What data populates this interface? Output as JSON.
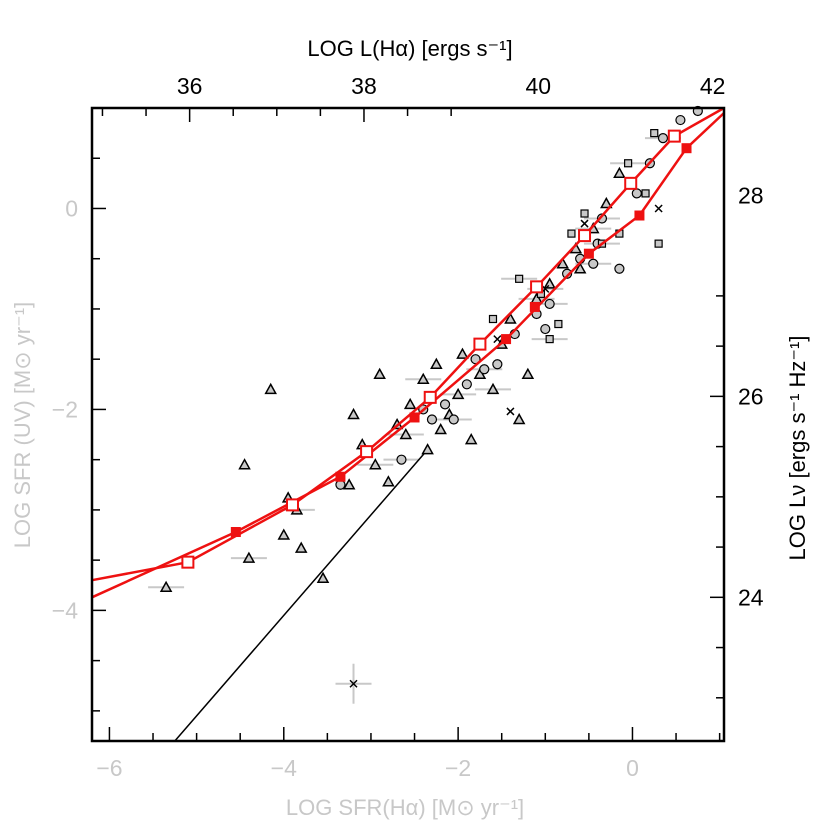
{
  "chart_data": {
    "type": "scatter",
    "axes": {
      "bottom": {
        "label": "LOG SFR(Hα) [M⊙ yr⁻¹]",
        "range": [
          -6.2,
          1.05
        ],
        "ticks": [
          "−6",
          "−4",
          "−2",
          "0"
        ],
        "tick_values": [
          -6,
          -4,
          -2,
          0
        ],
        "color": "#c8c8c8"
      },
      "left": {
        "label": "LOG SFR (UV) [M⊙ yr⁻¹]",
        "range": [
          -5.3,
          1.0
        ],
        "ticks": [
          "−4",
          "−2",
          "0"
        ],
        "tick_values": [
          -4,
          -2,
          0
        ],
        "color": "#c8c8c8"
      },
      "top": {
        "label": "LOG L(Hα) [ergs s⁻¹]",
        "ticks": [
          "36",
          "38",
          "40",
          "42"
        ],
        "tick_values_bottom_units": [
          -5.08,
          -3.08,
          -1.08,
          0.92
        ],
        "color": "#000000"
      },
      "right": {
        "label": "LOG Lν [ergs s⁻¹ Hz⁻¹]",
        "ticks": [
          "24",
          "26",
          "28"
        ],
        "tick_values_left_units": [
          -3.87,
          -1.87,
          0.13
        ],
        "color": "#000000"
      }
    },
    "one_to_one_line": {
      "x": [
        -5.25,
        -2.38
      ],
      "y": [
        -5.3,
        -2.43
      ],
      "color": "#000000"
    },
    "model_curves": [
      {
        "color": "#ee1111",
        "marker": "filled-square",
        "line_x": [
          -6.2,
          -4.55,
          -3.35,
          -2.5,
          -1.45,
          -0.5,
          0.08,
          0.62,
          1.05
        ],
        "line_y": [
          -3.87,
          -3.22,
          -2.67,
          -2.08,
          -1.3,
          -0.45,
          -0.07,
          0.6,
          0.95
        ],
        "points": [
          [
            -4.55,
            -3.22
          ],
          [
            -3.35,
            -2.67
          ],
          [
            -2.5,
            -2.08
          ],
          [
            -1.45,
            -1.3
          ],
          [
            -1.12,
            -0.98
          ],
          [
            -0.5,
            -0.45
          ],
          [
            0.08,
            -0.07
          ],
          [
            0.62,
            0.6
          ]
        ]
      },
      {
        "color": "#ee1111",
        "marker": "open-square",
        "line_x": [
          -6.2,
          -5.1,
          -3.9,
          -3.05,
          -2.32,
          -1.75,
          -1.1,
          -0.55,
          -0.02,
          0.48,
          1.05
        ],
        "line_y": [
          -3.7,
          -3.52,
          -2.95,
          -2.42,
          -1.88,
          -1.35,
          -0.78,
          -0.27,
          0.25,
          0.72,
          1.0
        ],
        "points": [
          [
            -5.1,
            -3.52
          ],
          [
            -3.9,
            -2.95
          ],
          [
            -3.05,
            -2.42
          ],
          [
            -2.32,
            -1.88
          ],
          [
            -1.75,
            -1.35
          ],
          [
            -1.1,
            -0.78
          ],
          [
            -0.55,
            -0.27
          ],
          [
            -0.02,
            0.25
          ],
          [
            0.48,
            0.72
          ]
        ]
      }
    ],
    "scatter_sets": [
      {
        "marker": "triangle",
        "points": [
          [
            -5.35,
            -3.77
          ],
          [
            -4.15,
            -1.8
          ],
          [
            -4.45,
            -2.55
          ],
          [
            -3.95,
            -2.88
          ],
          [
            -4.4,
            -3.48
          ],
          [
            -4.0,
            -3.25
          ],
          [
            -3.8,
            -3.38
          ],
          [
            -3.55,
            -3.68
          ],
          [
            -3.85,
            -3.0
          ],
          [
            -3.25,
            -2.75
          ],
          [
            -3.1,
            -2.35
          ],
          [
            -3.2,
            -2.05
          ],
          [
            -2.95,
            -2.55
          ],
          [
            -2.8,
            -2.72
          ],
          [
            -2.7,
            -2.15
          ],
          [
            -2.55,
            -1.95
          ],
          [
            -2.4,
            -1.7
          ],
          [
            -2.35,
            -2.4
          ],
          [
            -2.25,
            -1.55
          ],
          [
            -2.1,
            -2.05
          ],
          [
            -2.0,
            -1.85
          ],
          [
            -1.95,
            -1.45
          ],
          [
            -1.85,
            -2.3
          ],
          [
            -1.75,
            -1.65
          ],
          [
            -1.6,
            -1.8
          ],
          [
            -1.5,
            -1.35
          ],
          [
            -1.4,
            -1.1
          ],
          [
            -1.2,
            -1.65
          ],
          [
            -1.1,
            -0.9
          ],
          [
            -0.95,
            -0.75
          ],
          [
            -0.8,
            -0.55
          ],
          [
            -0.65,
            -0.4
          ],
          [
            -0.45,
            -0.2
          ],
          [
            -0.3,
            0.05
          ],
          [
            -0.15,
            0.35
          ],
          [
            -2.9,
            -1.65
          ],
          [
            -2.6,
            -2.25
          ],
          [
            -1.3,
            -2.1
          ],
          [
            -2.2,
            -2.2
          ],
          [
            -0.6,
            -0.6
          ]
        ]
      },
      {
        "marker": "circle",
        "points": [
          [
            -2.65,
            -2.5
          ],
          [
            -2.3,
            -2.1
          ],
          [
            -2.15,
            -1.95
          ],
          [
            -1.9,
            -1.75
          ],
          [
            -1.7,
            -1.6
          ],
          [
            -1.55,
            -1.55
          ],
          [
            -1.35,
            -1.25
          ],
          [
            -1.1,
            -1.05
          ],
          [
            -0.95,
            -0.95
          ],
          [
            -0.75,
            -0.65
          ],
          [
            -0.6,
            -0.5
          ],
          [
            -0.4,
            -0.35
          ],
          [
            -0.35,
            -0.1
          ],
          [
            -0.15,
            -0.6
          ],
          [
            0.05,
            0.15
          ],
          [
            0.2,
            0.45
          ],
          [
            0.35,
            0.7
          ],
          [
            0.55,
            0.88
          ],
          [
            0.75,
            0.97
          ],
          [
            -1.8,
            -1.5
          ],
          [
            -2.05,
            -2.1
          ],
          [
            -3.35,
            -2.75
          ],
          [
            -2.4,
            -2.0
          ],
          [
            -1.0,
            -1.2
          ],
          [
            -0.45,
            -0.55
          ]
        ]
      },
      {
        "marker": "square",
        "points": [
          [
            -1.3,
            -0.7
          ],
          [
            -1.05,
            -0.85
          ],
          [
            -0.85,
            -1.15
          ],
          [
            -0.55,
            -0.05
          ],
          [
            -0.35,
            -0.35
          ],
          [
            -0.15,
            -0.25
          ],
          [
            0.3,
            -0.35
          ],
          [
            0.15,
            0.15
          ],
          [
            -0.05,
            0.45
          ],
          [
            0.25,
            0.75
          ],
          [
            -1.6,
            -1.1
          ],
          [
            -0.7,
            -0.25
          ],
          [
            -0.95,
            -1.3
          ]
        ]
      },
      {
        "marker": "cross",
        "points": [
          [
            -3.2,
            -4.73
          ],
          [
            -1.4,
            -2.02
          ],
          [
            0.3,
            0.0
          ],
          [
            -0.55,
            -0.15
          ],
          [
            -1.0,
            -0.8
          ],
          [
            -1.55,
            -1.3
          ]
        ]
      }
    ]
  }
}
